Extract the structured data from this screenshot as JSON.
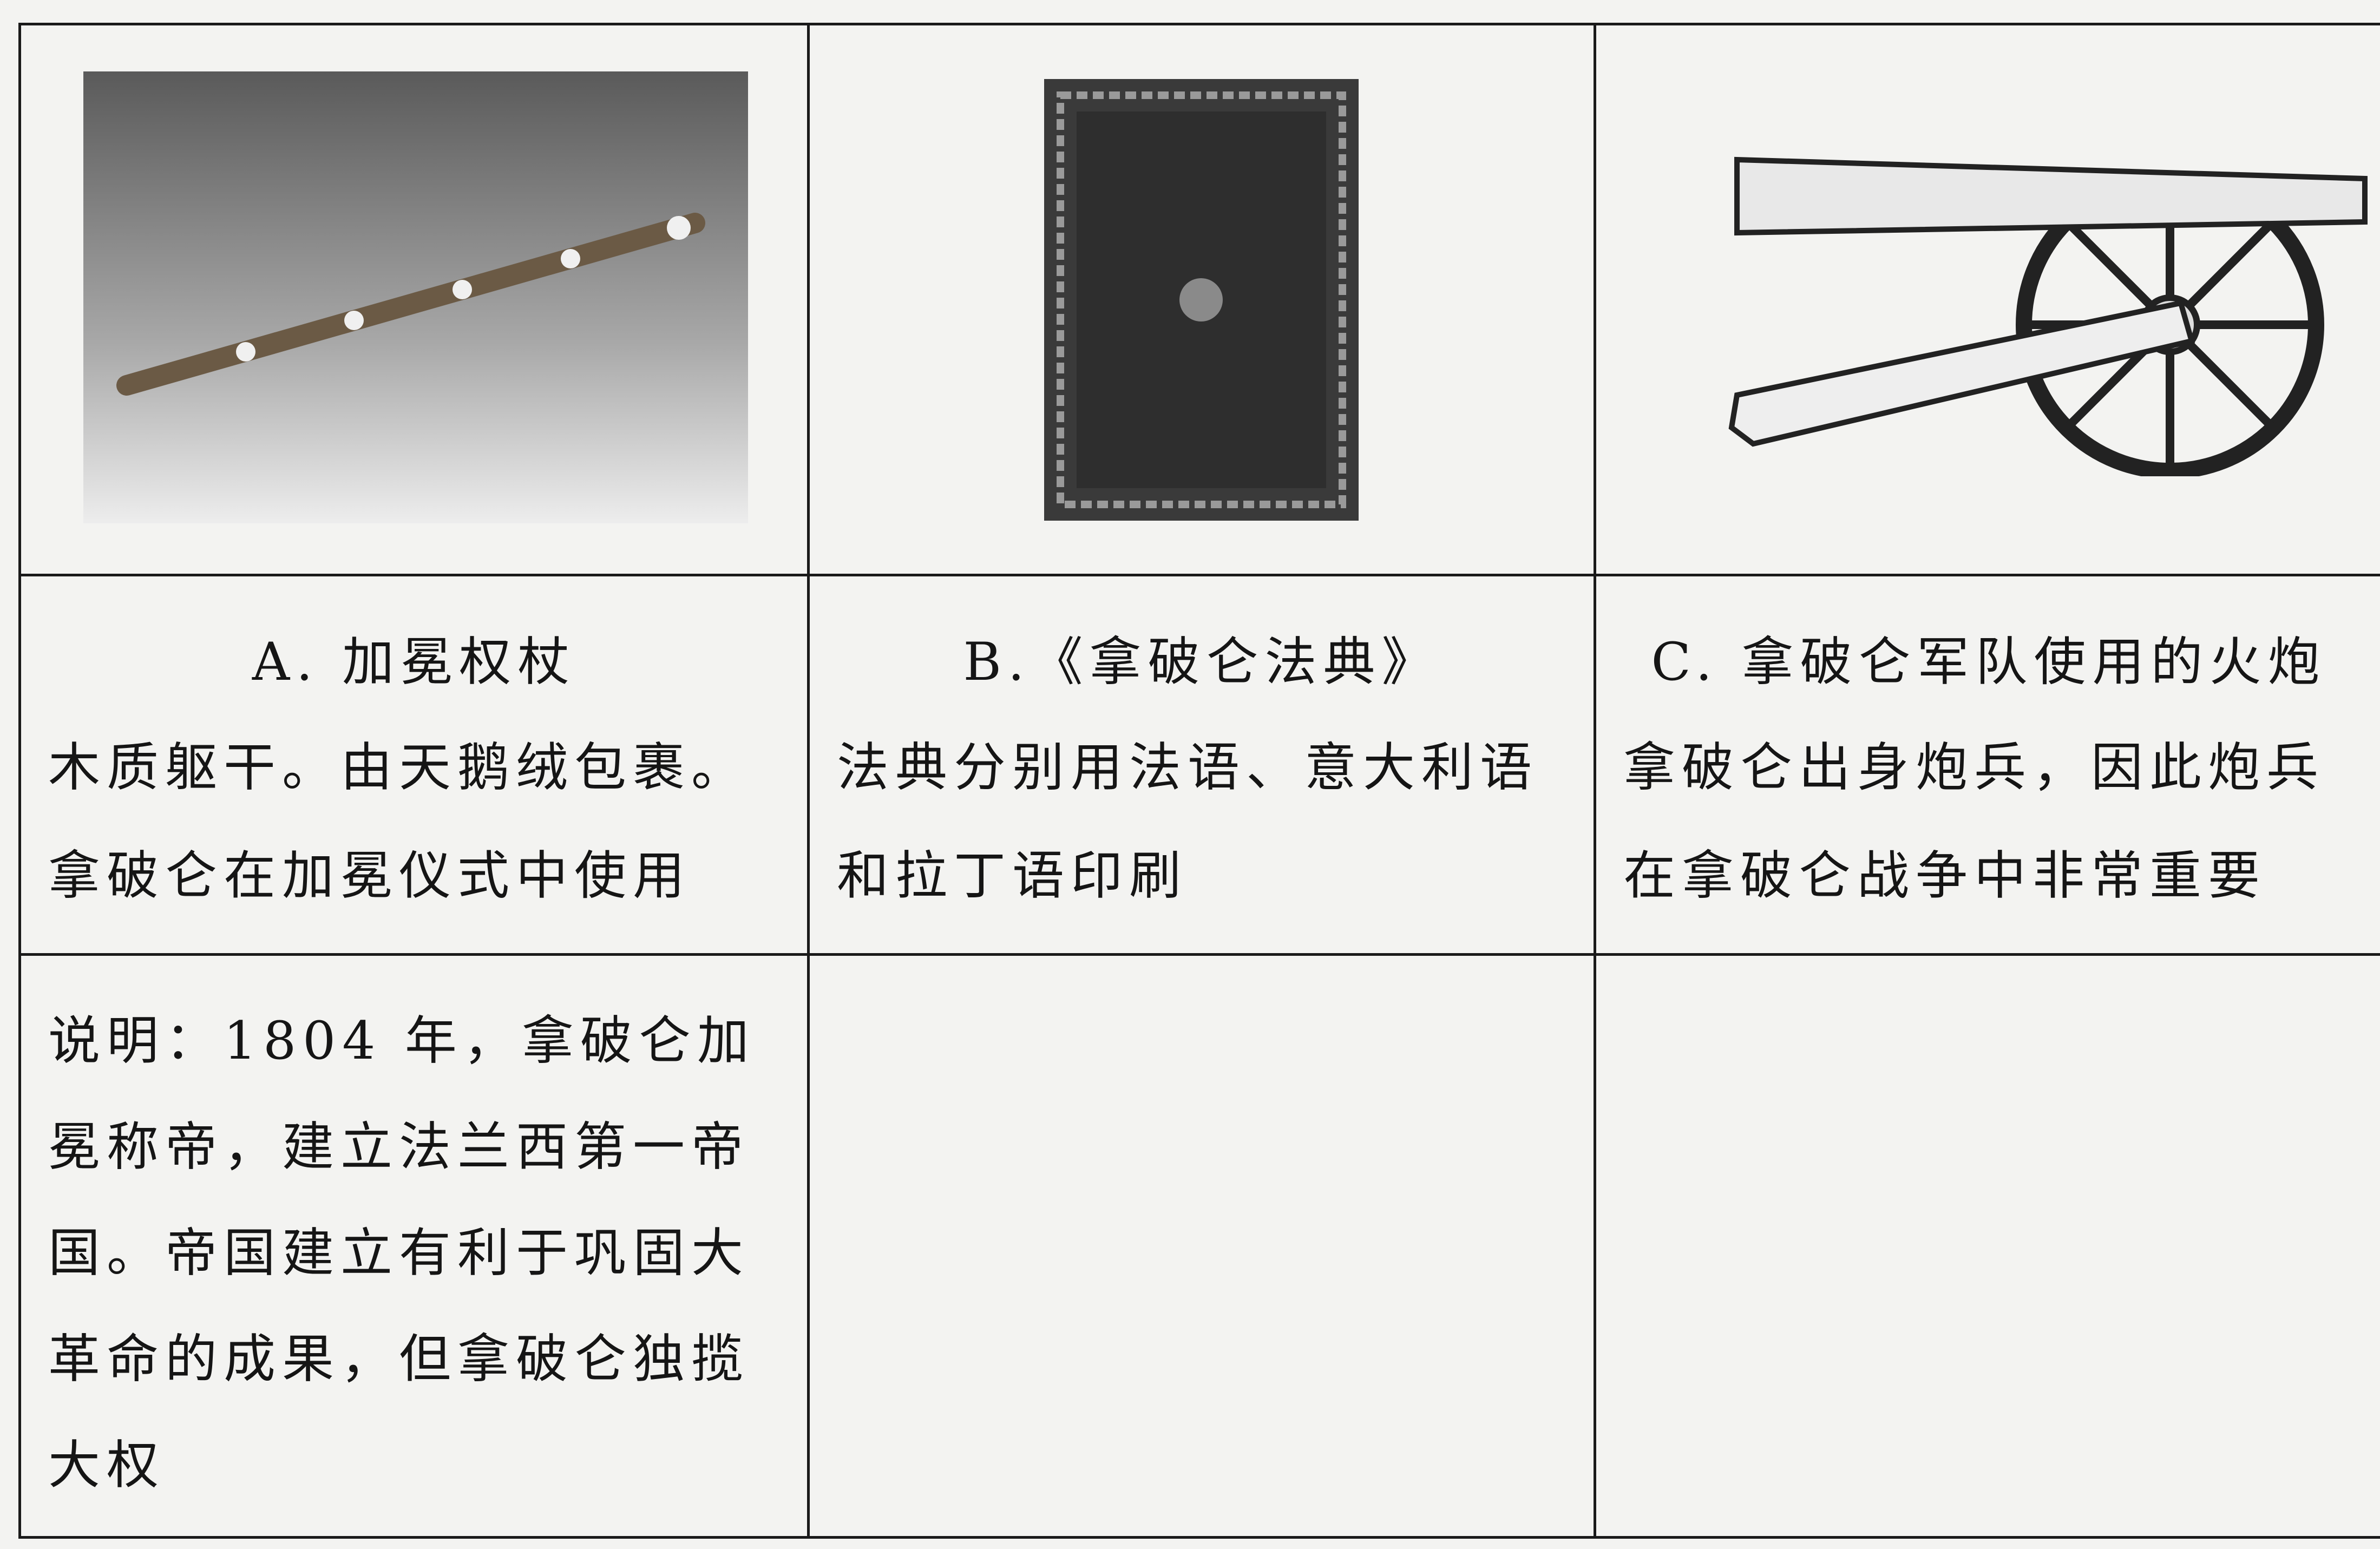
{
  "items": [
    {
      "label": "A. 加冕权杖",
      "description": [
        "木质躯干。由天鹅绒包裹。",
        "拿破仑在加冕仪式中使用"
      ]
    },
    {
      "label": "B.《拿破仑法典》",
      "description": [
        "法典分别用法语、意大利语",
        "和拉丁语印刷"
      ]
    },
    {
      "label": "C. 拿破仑军队使用的火炮",
      "description": [
        "拿破仑出身炮兵，因此炮兵",
        "在拿破仑战争中非常重要"
      ]
    }
  ],
  "note": [
    "说明：1804 年，拿破仑加",
    "冕称帝，建立法兰西第一帝",
    "国。帝国建立有利于巩固大",
    "革命的成果，但拿破仑独揽",
    "大权"
  ]
}
